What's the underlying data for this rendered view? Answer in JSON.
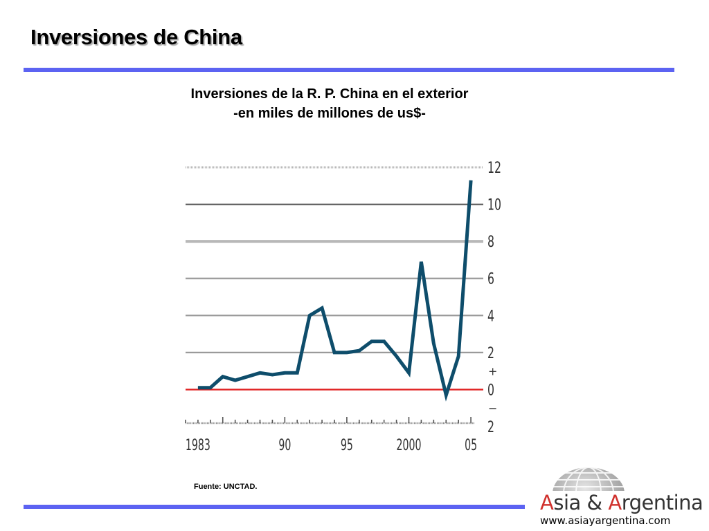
{
  "slide": {
    "title": "Inversiones de China",
    "source_note": "Fuente: UNCTAD."
  },
  "logo": {
    "cap_a": "A",
    "part1": "sia & ",
    "cap_b": "A",
    "part2": "rgentina",
    "url": "www.asiayargentina.com"
  },
  "colors": {
    "accent_rule": "#5c63f2",
    "series_line": "#0e4d6b",
    "zero_line": "#e02020"
  },
  "chart_data": {
    "type": "line",
    "title_line1": "Inversiones de la R. P. China en el exterior",
    "title_line2": "-en miles de millones de us$-",
    "x_ticks": [
      {
        "value": 1983,
        "label": "1983"
      },
      {
        "value": 1990,
        "label": "90"
      },
      {
        "value": 1995,
        "label": "95"
      },
      {
        "value": 2000,
        "label": "2000"
      },
      {
        "value": 2005,
        "label": "05"
      }
    ],
    "xlim": [
      1982,
      2006
    ],
    "y_ticks": [
      {
        "value": 12,
        "label": "12"
      },
      {
        "value": 10,
        "label": "10"
      },
      {
        "value": 8,
        "label": "8"
      },
      {
        "value": 6,
        "label": "6"
      },
      {
        "value": 4,
        "label": "4"
      },
      {
        "value": 2,
        "label": "2"
      },
      {
        "value": 0,
        "label": "0"
      },
      {
        "value": -2,
        "label": "2"
      }
    ],
    "y_sign_labels": {
      "plus": "+",
      "minus": "−"
    },
    "ylim": [
      -2,
      12
    ],
    "y_axis_side": "right",
    "grid": true,
    "series": [
      {
        "x": [
          1983,
          1984,
          1985,
          1986,
          1987,
          1988,
          1989,
          1990,
          1991,
          1992,
          1993,
          1994,
          1995,
          1996,
          1997,
          1998,
          1999,
          2000,
          2001,
          2002,
          2003,
          2004,
          2005
        ],
        "values": [
          0.1,
          0.1,
          0.7,
          0.5,
          0.7,
          0.9,
          0.8,
          0.9,
          0.9,
          4.0,
          4.4,
          2.0,
          2.0,
          2.1,
          2.6,
          2.6,
          1.8,
          0.9,
          6.9,
          2.5,
          -0.3,
          1.8,
          11.3
        ]
      }
    ]
  }
}
